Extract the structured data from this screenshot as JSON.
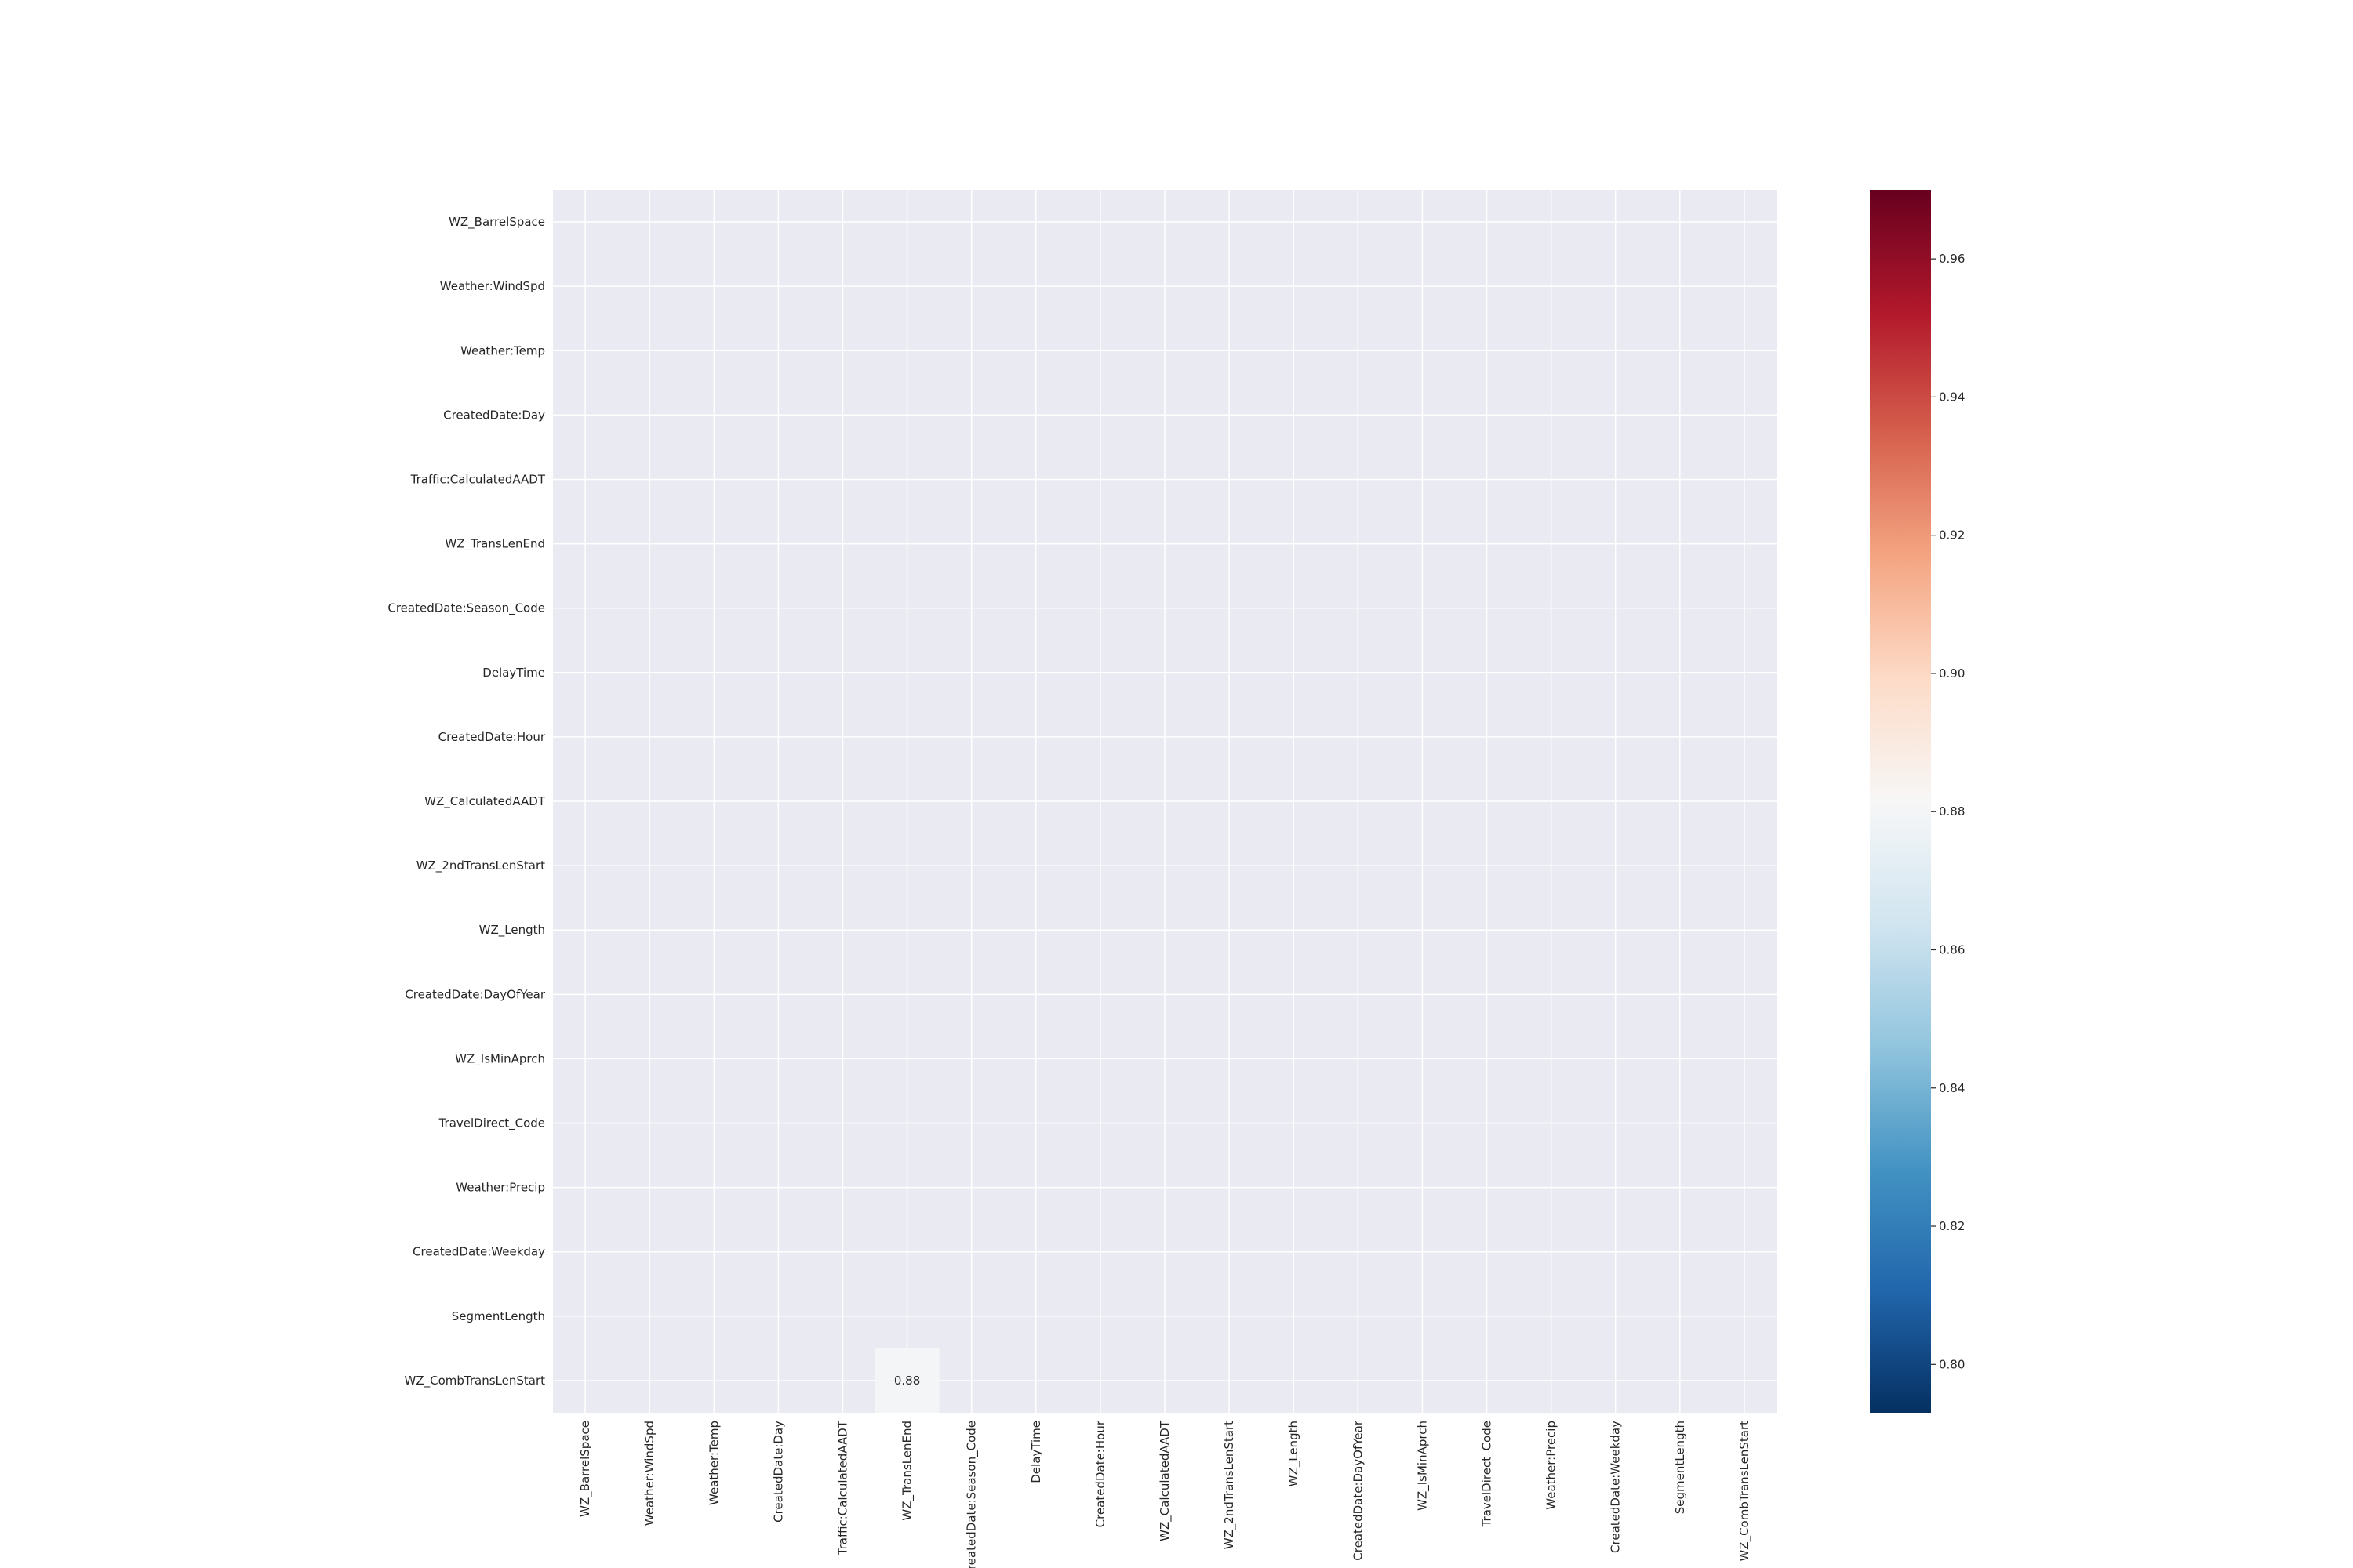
{
  "chart_data": {
    "type": "heatmap",
    "title": "",
    "xlabel": "",
    "ylabel": "",
    "rows": [
      "WZ_BarrelSpace",
      "Weather:WindSpd",
      "Weather:Temp",
      "CreatedDate:Day",
      "Traffic:CalculatedAADT",
      "WZ_TransLenEnd",
      "CreatedDate:Season_Code",
      "DelayTime",
      "CreatedDate:Hour",
      "WZ_CalculatedAADT",
      "WZ_2ndTransLenStart",
      "WZ_Length",
      "CreatedDate:DayOfYear",
      "WZ_IsMinAprch",
      "TravelDirect_Code",
      "Weather:Precip",
      "CreatedDate:Weekday",
      "SegmentLength",
      "WZ_CombTransLenStart"
    ],
    "columns": [
      "WZ_BarrelSpace",
      "Weather:WindSpd",
      "Weather:Temp",
      "CreatedDate:Day",
      "Traffic:CalculatedAADT",
      "WZ_TransLenEnd",
      "CreatedDate:Season_Code",
      "DelayTime",
      "CreatedDate:Hour",
      "WZ_CalculatedAADT",
      "WZ_2ndTransLenStart",
      "WZ_Length",
      "CreatedDate:DayOfYear",
      "WZ_IsMinAprch",
      "TravelDirect_Code",
      "Weather:Precip",
      "CreatedDate:Weekday",
      "SegmentLength",
      "WZ_CombTransLenStart"
    ],
    "cells": [
      {
        "row": "WZ_CombTransLenStart",
        "column": "WZ_TransLenEnd",
        "value": 0.88,
        "label": "0.88"
      }
    ],
    "masked_value": "all other cells empty",
    "colormap": "RdBu_r",
    "colorbar": {
      "range": [
        0.793,
        0.97
      ],
      "ticks": [
        0.8,
        0.82,
        0.84,
        0.86,
        0.88,
        0.9,
        0.92,
        0.94,
        0.96
      ],
      "tick_labels": [
        "0.80",
        "0.82",
        "0.84",
        "0.86",
        "0.88",
        "0.90",
        "0.92",
        "0.94",
        "0.96"
      ],
      "placement": "right"
    },
    "grid": true
  },
  "colors": {
    "plot_background": "#eaeaf2",
    "grid": "#ffffff",
    "text": "#262626"
  }
}
